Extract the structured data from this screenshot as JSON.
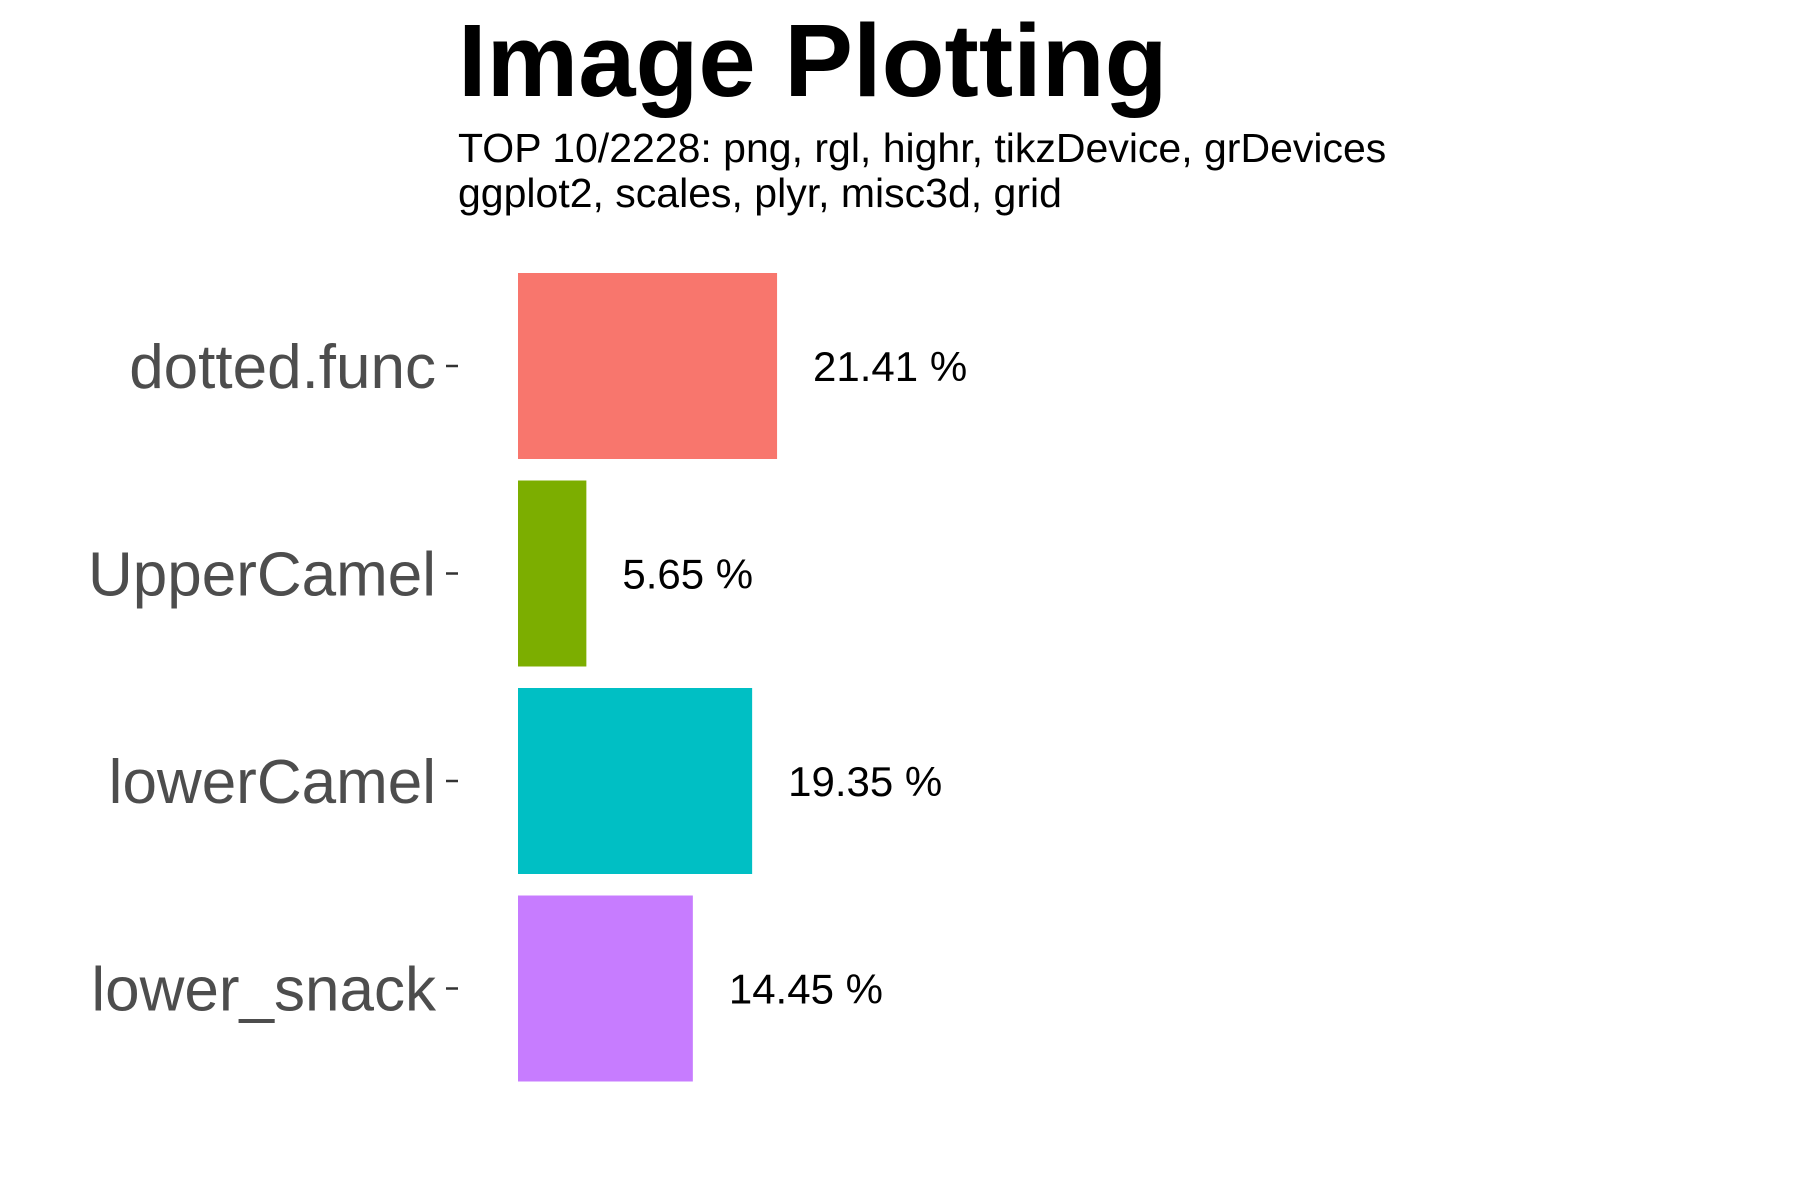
{
  "chart_data": {
    "type": "bar",
    "orientation": "horizontal",
    "title": "Image Plotting",
    "subtitle": [
      "TOP 10/2228: png, rgl, highr, tikzDevice, grDevices",
      "ggplot2, scales, plyr, misc3d, grid"
    ],
    "categories": [
      "lower_snack",
      "lowerCamel",
      "UpperCamel",
      "dotted.func"
    ],
    "values": [
      14.45,
      19.35,
      5.65,
      21.41
    ],
    "value_labels": [
      "14.45 %",
      "19.35 %",
      "5.65 %",
      "21.41 %"
    ],
    "colors": [
      "#C77CFF",
      "#00BFC4",
      "#7CAE00",
      "#F8766D"
    ],
    "xlabel": "",
    "ylabel": "",
    "xlim": [
      0,
      70
    ],
    "grid": false,
    "legend": "none"
  }
}
